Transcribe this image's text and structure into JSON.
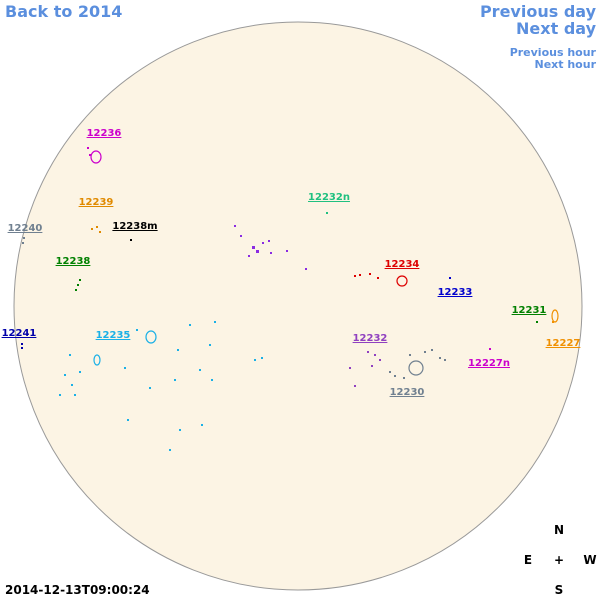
{
  "nav": {
    "back": "Back to 2014",
    "previous_day": "Previous day",
    "next_day": "Next day",
    "previous_hour": "Previous hour",
    "next_hour": "Next hour"
  },
  "compass": {
    "north": "N",
    "east": "E",
    "center": "+",
    "west": "W",
    "south": "S"
  },
  "timestamp": "2014-12-13T09:00:24",
  "regions": [
    {
      "label": "12236",
      "color": "#cc00cc"
    },
    {
      "label": "12239",
      "color": "#e08a00"
    },
    {
      "label": "12238m",
      "color": "#000000"
    },
    {
      "label": "12240",
      "color": "#708090"
    },
    {
      "label": "12238",
      "color": "#008000"
    },
    {
      "label": "12241",
      "color": "#0000aa"
    },
    {
      "label": "12235",
      "color": "#1ab0e6"
    },
    {
      "label": "12232n",
      "color": "#20c080"
    },
    {
      "label": "12234",
      "color": "#dd0000"
    },
    {
      "label": "12233",
      "color": "#0000cc"
    },
    {
      "label": "12231",
      "color": "#008000"
    },
    {
      "label": "12227",
      "color": "#f09000"
    },
    {
      "label": "12232",
      "color": "#9040c0"
    },
    {
      "label": "12227n",
      "color": "#cc00cc"
    },
    {
      "label": "12230",
      "color": "#708090"
    }
  ]
}
